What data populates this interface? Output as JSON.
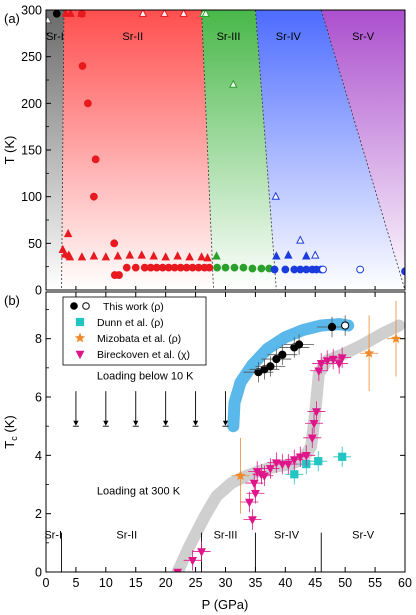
{
  "chart_data": [
    {
      "panel": "(a)",
      "type": "scatter",
      "ylabel": "T (K)",
      "xlim": [
        0,
        60
      ],
      "ylim": [
        0,
        300
      ],
      "yticks": [
        0,
        50,
        100,
        150,
        200,
        250,
        300
      ],
      "grid": false,
      "phases": [
        {
          "name": "Sr-I",
          "color": "#6e6e6e",
          "boundary": [
            [
              0,
              300
            ],
            [
              3,
              300
            ],
            [
              2.6,
              0
            ],
            [
              0,
              0
            ]
          ]
        },
        {
          "name": "Sr-II",
          "color": "#ff5555",
          "boundary": [
            [
              3,
              300
            ],
            [
              26,
              300
            ],
            [
              28,
              0
            ],
            [
              2.6,
              0
            ]
          ]
        },
        {
          "name": "Sr-III",
          "color": "#44bb44",
          "boundary": [
            [
              26,
              300
            ],
            [
              35,
              300
            ],
            [
              38.5,
              0
            ],
            [
              28,
              0
            ]
          ]
        },
        {
          "name": "Sr-IV",
          "color": "#4466ff",
          "boundary": [
            [
              35,
              300
            ],
            [
              46,
              300
            ],
            [
              60,
              0
            ],
            [
              38.5,
              0
            ]
          ]
        },
        {
          "name": "Sr-V",
          "color": "#aa44cc",
          "boundary": [
            [
              46,
              300
            ],
            [
              60,
              300
            ],
            [
              60,
              0
            ]
          ]
        }
      ],
      "series": [
        {
          "marker": "circle",
          "color": "#e8191f",
          "filled": true,
          "points": [
            [
              6,
              296
            ],
            [
              6.1,
              240
            ],
            [
              7,
              200
            ],
            [
              8.3,
              140
            ],
            [
              8,
              100
            ],
            [
              11.4,
              50
            ],
            [
              11.5,
              16
            ],
            [
              12.2,
              16
            ]
          ]
        },
        {
          "marker": "triangle-up",
          "color": "#e8191f",
          "filled": true,
          "points": [
            [
              3.3,
              296
            ],
            [
              4.1,
              296
            ],
            [
              5.9,
              296
            ],
            [
              3.7,
              60
            ],
            [
              2.8,
              43
            ],
            [
              3.2,
              38
            ],
            [
              3.8,
              37
            ],
            [
              4,
              35
            ],
            [
              6,
              35
            ],
            [
              8,
              36
            ],
            [
              10,
              35
            ],
            [
              12,
              36
            ],
            [
              14,
              37
            ],
            [
              16,
              37
            ],
            [
              18,
              36
            ],
            [
              20,
              35
            ],
            [
              22,
              36
            ],
            [
              24,
              35
            ],
            [
              26,
              35
            ],
            [
              27,
              34
            ]
          ]
        },
        {
          "marker": "circle",
          "color": "#e8191f",
          "filled": true,
          "points": [
            [
              13.5,
              24
            ],
            [
              15,
              24
            ],
            [
              16.5,
              24
            ],
            [
              17.5,
              24
            ],
            [
              18.5,
              24
            ],
            [
              19.5,
              24
            ],
            [
              20.5,
              24
            ],
            [
              21.5,
              24
            ],
            [
              22.5,
              24
            ],
            [
              23.5,
              24
            ],
            [
              24.5,
              24
            ],
            [
              25.5,
              24
            ],
            [
              26.5,
              24
            ],
            [
              27.3,
              24
            ]
          ]
        },
        {
          "marker": "triangle-up",
          "color": "#e8191f",
          "filled": false,
          "points": [
            [
              16.2,
              296
            ],
            [
              19.8,
              296
            ],
            [
              23,
              296
            ]
          ]
        },
        {
          "marker": "triangle-up",
          "color": "#2aa02a",
          "filled": false,
          "points": [
            [
              26.3,
              296
            ],
            [
              26.7,
              296
            ],
            [
              31.3,
              220
            ]
          ]
        },
        {
          "marker": "triangle-up",
          "color": "#2aa02a",
          "filled": true,
          "points": [
            [
              28.5,
              36
            ]
          ]
        },
        {
          "marker": "circle",
          "color": "#2aa02a",
          "filled": true,
          "points": [
            [
              28.6,
              24
            ],
            [
              30,
              24
            ],
            [
              31.5,
              24
            ],
            [
              33,
              24
            ],
            [
              34.5,
              23
            ],
            [
              36,
              23
            ],
            [
              37.3,
              23
            ]
          ]
        },
        {
          "marker": "triangle-up",
          "color": "#1a3bdd",
          "filled": false,
          "points": [
            [
              38.4,
              100
            ],
            [
              42.5,
              53
            ],
            [
              45,
              37
            ]
          ]
        },
        {
          "marker": "triangle-up",
          "color": "#1a3bdd",
          "filled": true,
          "points": [
            [
              38.5,
              36
            ],
            [
              40.5,
              37
            ],
            [
              43.5,
              36
            ]
          ]
        },
        {
          "marker": "circle",
          "color": "#1a3bdd",
          "filled": true,
          "points": [
            [
              38.2,
              22
            ],
            [
              40,
              22
            ],
            [
              41.5,
              22
            ],
            [
              42.5,
              22
            ],
            [
              43.5,
              22
            ],
            [
              44.5,
              22
            ],
            [
              45.2,
              22
            ],
            [
              46,
              22
            ],
            [
              60,
              20
            ]
          ]
        },
        {
          "marker": "circle",
          "color": "#1a3bdd",
          "filled": false,
          "points": [
            [
              46.3,
              22
            ],
            [
              52.5,
              22
            ]
          ]
        },
        {
          "marker": "circle",
          "color": "#000000",
          "filled": true,
          "points": [
            [
              1.8,
              296
            ]
          ]
        },
        {
          "marker": "triangle-up",
          "color": "#555555",
          "filled": false,
          "points": [
            [
              0.3,
              289
            ]
          ]
        }
      ]
    },
    {
      "panel": "(b)",
      "type": "scatter",
      "xlabel": "P (GPa)",
      "ylabel": "T",
      "ylabel_sub": "c",
      "ylabel_unit": " (K)",
      "xlim": [
        0,
        60
      ],
      "ylim": [
        0,
        9.6
      ],
      "xticks": [
        0,
        5,
        10,
        15,
        20,
        25,
        30,
        35,
        40,
        45,
        50,
        55,
        60
      ],
      "yticks": [
        0,
        2,
        4,
        6,
        8
      ],
      "grid": false,
      "legend_position": "top-left",
      "legend": [
        {
          "label": "This work (ρ)",
          "marker": "circle-pair",
          "color": "#000000"
        },
        {
          "label": "Dunn et al. (ρ)",
          "marker": "square",
          "color": "#22c4c4"
        },
        {
          "label": "Mizobata et al. (ρ)",
          "marker": "star",
          "color": "#f08a2c"
        },
        {
          "label": "Bireckoven et al. (χ)",
          "marker": "triangle-down",
          "color": "#e0158a"
        }
      ],
      "annotations": [
        {
          "text": "Loading below 10 K",
          "x": 8.5,
          "y": 6.6
        },
        {
          "text": "Loading at 300 K",
          "x": 8.5,
          "y": 2.65
        }
      ],
      "phase_labels": [
        {
          "text": "Sr-I",
          "x": 1.2
        },
        {
          "text": "Sr-II",
          "x": 13.5
        },
        {
          "text": "Sr-III",
          "x": 30
        },
        {
          "text": "Sr-IV",
          "x": 40.2
        },
        {
          "text": "Sr-V",
          "x": 53
        }
      ],
      "phase_dividers_x": [
        2.6,
        26,
        35,
        46
      ],
      "upper_limit_arrows": {
        "x": [
          5,
          10,
          15,
          20,
          25,
          30
        ],
        "y_top": 6.2,
        "y_bottom": 5.05
      },
      "bands": [
        {
          "color": "#5bb8ea",
          "points": [
            [
              31.3,
              5
            ],
            [
              31.5,
              5.8
            ],
            [
              32.5,
              6.5
            ],
            [
              34.5,
              7.1
            ],
            [
              37,
              7.65
            ],
            [
              40,
              8.05
            ],
            [
              43,
              8.3
            ],
            [
              46,
              8.45
            ],
            [
              49,
              8.5
            ],
            [
              50.5,
              8.45
            ]
          ]
        },
        {
          "color": "#cfcfcf",
          "points": [
            [
              22,
              0
            ],
            [
              24,
              0.9
            ],
            [
              26.5,
              1.9
            ],
            [
              28.5,
              2.6
            ],
            [
              31,
              3.05
            ],
            [
              33.5,
              3.3
            ],
            [
              35.5,
              3.45
            ],
            [
              38,
              3.6
            ],
            [
              41,
              3.7
            ],
            [
              43,
              3.9
            ],
            [
              44.3,
              4.3
            ],
            [
              45,
              5.5
            ],
            [
              45.6,
              6.8
            ],
            [
              47,
              7.25
            ],
            [
              50,
              7.5
            ],
            [
              53,
              7.8
            ],
            [
              56,
              8.15
            ],
            [
              59,
              8.45
            ]
          ]
        }
      ],
      "series": [
        {
          "name": "This work (ρ)",
          "marker": "circle",
          "color": "#000000",
          "filled": true,
          "points": [
            [
              35.5,
              6.85
            ],
            [
              36.5,
              6.95
            ],
            [
              37.5,
              7.05
            ],
            [
              38.5,
              7.3
            ],
            [
              39.5,
              7.45
            ],
            [
              41.5,
              7.7
            ],
            [
              42.3,
              7.8
            ],
            [
              47.8,
              8.4
            ]
          ]
        },
        {
          "name": "This work (ρ)",
          "marker": "circle",
          "color": "#000000",
          "filled": false,
          "points": [
            [
              50,
              8.45
            ]
          ]
        },
        {
          "name": "Dunn et al. (ρ)",
          "marker": "square",
          "color": "#22c4c4",
          "filled": true,
          "points": [
            [
              41.5,
              3.35
            ],
            [
              43.5,
              3.7
            ],
            [
              45.5,
              3.8
            ],
            [
              49.5,
              3.95
            ]
          ]
        },
        {
          "name": "Mizobata et al. (ρ)",
          "marker": "star",
          "color": "#f08a2c",
          "filled": true,
          "points": [
            [
              32.5,
              3.3
            ],
            [
              54,
              7.5
            ],
            [
              58.5,
              8
            ]
          ]
        },
        {
          "name": "Bireckoven et al. (χ)",
          "marker": "triangle-down",
          "color": "#e0158a",
          "filled": true,
          "points": [
            [
              22,
              0
            ],
            [
              24.5,
              0.4
            ],
            [
              26,
              0.7
            ],
            [
              34.5,
              1.8
            ],
            [
              34,
              2.4
            ],
            [
              35,
              2.7
            ],
            [
              34.8,
              3.05
            ],
            [
              35.3,
              3.45
            ],
            [
              36,
              3.35
            ],
            [
              36.5,
              3.3
            ],
            [
              37.5,
              3.55
            ],
            [
              38.5,
              3.75
            ],
            [
              39.5,
              3.7
            ],
            [
              40.5,
              3.7
            ],
            [
              41.5,
              3.85
            ],
            [
              42.5,
              3.95
            ],
            [
              43.5,
              4
            ],
            [
              44.5,
              4.6
            ],
            [
              44.8,
              5.1
            ],
            [
              45.2,
              5.5
            ],
            [
              45.6,
              6.9
            ],
            [
              46,
              7.15
            ],
            [
              47,
              7.25
            ],
            [
              48,
              7.3
            ],
            [
              49,
              7.15
            ],
            [
              49.5,
              7.35
            ]
          ]
        }
      ]
    }
  ]
}
